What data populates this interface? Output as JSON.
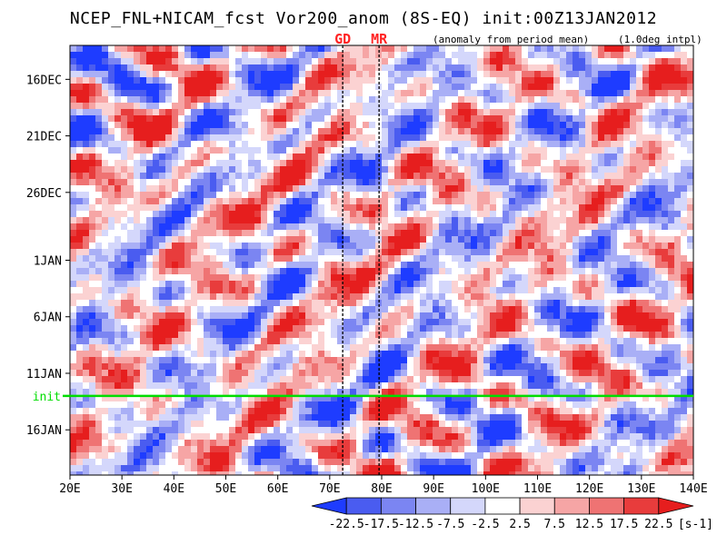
{
  "header": {
    "title": "NCEP_FNL+NICAM_fcst Vor200_anom (8S-EQ) init:00Z13JAN2012",
    "subtitle": "(anomaly from period mean)",
    "resolution": "(1.0deg intpl)"
  },
  "chart_data": {
    "type": "heatmap",
    "xlabel": "",
    "ylabel": "",
    "x_range": [
      20,
      140
    ],
    "x_ticks": [
      {
        "value": 20,
        "label": "20E"
      },
      {
        "value": 30,
        "label": "30E"
      },
      {
        "value": 40,
        "label": "40E"
      },
      {
        "value": 50,
        "label": "50E"
      },
      {
        "value": 60,
        "label": "60E"
      },
      {
        "value": 70,
        "label": "70E"
      },
      {
        "value": 80,
        "label": "80E"
      },
      {
        "value": 90,
        "label": "90E"
      },
      {
        "value": 100,
        "label": "100E"
      },
      {
        "value": 110,
        "label": "110E"
      },
      {
        "value": 120,
        "label": "120E"
      },
      {
        "value": 130,
        "label": "130E"
      },
      {
        "value": 140,
        "label": "140E"
      }
    ],
    "y_range": [
      "13DEC2011",
      "20JAN2012"
    ],
    "y_ticks": [
      {
        "value": "16DEC2011",
        "label": "16DEC"
      },
      {
        "value": "21DEC2011",
        "label": "21DEC"
      },
      {
        "value": "26DEC2011",
        "label": "26DEC"
      },
      {
        "value": "1JAN2012",
        "label": "1JAN"
      },
      {
        "value": "6JAN2012",
        "label": "6JAN"
      },
      {
        "value": "11JAN2012",
        "label": "11JAN"
      },
      {
        "value": "16JAN2012",
        "label": "16JAN"
      }
    ],
    "init_line": {
      "date": "13JAN2012",
      "label": "init",
      "color": "#00dd00"
    },
    "reference_lines": [
      {
        "label": "GD",
        "lon": 72.5
      },
      {
        "label": "MR",
        "lon": 79.5
      }
    ],
    "reference_label_color": "#ff2222",
    "colorbar": {
      "levels": [
        -22.5,
        -17.5,
        -12.5,
        -7.5,
        -2.5,
        2.5,
        7.5,
        12.5,
        17.5,
        22.5
      ],
      "labels": [
        "-22.5",
        "-17.5",
        "-12.5",
        "-7.5",
        "-2.5",
        "2.5",
        "7.5",
        "12.5",
        "17.5",
        "22.5"
      ],
      "colors": [
        "#1e3cff",
        "#4a5cf0",
        "#7b85f2",
        "#a9aff6",
        "#d4d7fb",
        "#ffffff",
        "#fbd2d2",
        "#f6a5a5",
        "#ef7373",
        "#e83c3c",
        "#e61e1e"
      ],
      "unit": "[s-1]"
    }
  }
}
